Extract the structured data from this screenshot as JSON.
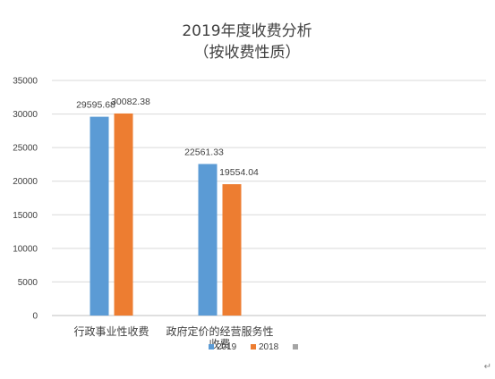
{
  "chart_data": {
    "type": "bar",
    "title": "2019年度收费分析",
    "subtitle": "（按收费性质）",
    "categories": [
      "行政事业性收费",
      "政府定价的经营服务性收费"
    ],
    "series": [
      {
        "name": "2019",
        "values": [
          29595.68,
          22561.33
        ],
        "color": "#5b9bd5"
      },
      {
        "name": "2018",
        "values": [
          30082.38,
          19554.04
        ],
        "color": "#ed7d31"
      },
      {
        "name": "",
        "values": [
          null,
          null
        ],
        "color": "#a5a5a5"
      }
    ],
    "data_labels": [
      [
        "29595.68",
        "22561.33"
      ],
      [
        "30082.38",
        "19554.04"
      ]
    ],
    "ylim": [
      0,
      35000
    ],
    "yticks": [
      "0",
      "5000",
      "10000",
      "15000",
      "20000",
      "25000",
      "30000",
      "35000"
    ],
    "grid": true,
    "legend": "bottom"
  },
  "page": {
    "edge_mark": "↵"
  }
}
